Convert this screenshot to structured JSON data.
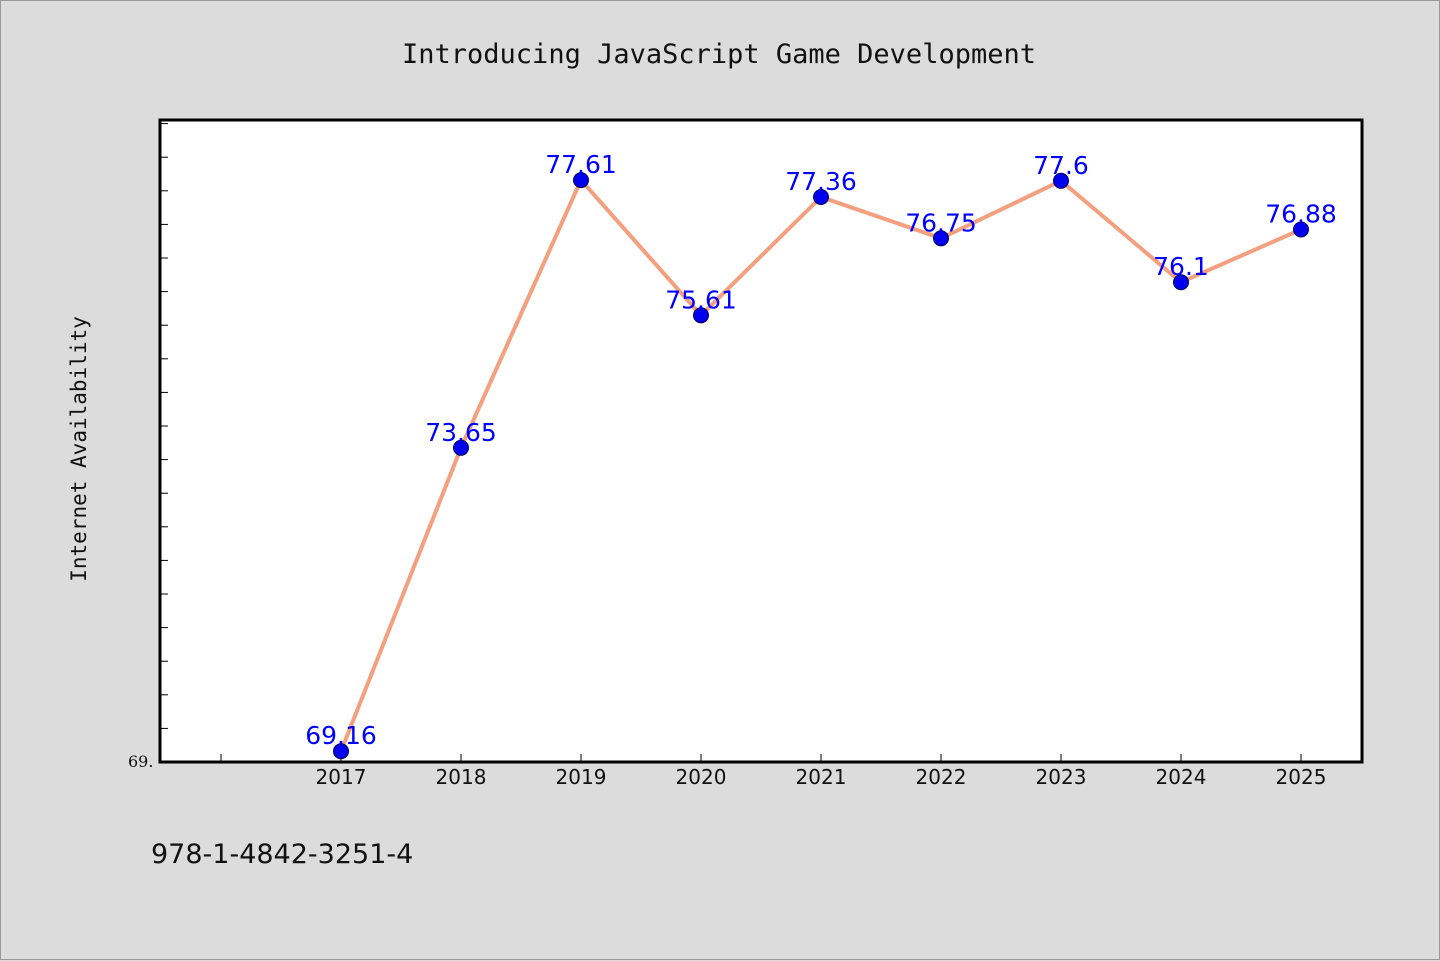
{
  "chart_data": {
    "type": "line",
    "title": "Introducing JavaScript Game Development",
    "xlabel": "",
    "ylabel": "Internet Availability",
    "categories": [
      "2017",
      "2018",
      "2019",
      "2020",
      "2021",
      "2022",
      "2023",
      "2024",
      "2025"
    ],
    "series": [
      {
        "values": [
          69.16,
          73.65,
          77.61,
          75.61,
          77.36,
          76.75,
          77.6,
          76.1,
          76.88
        ]
      }
    ],
    "data_labels": [
      "69.16",
      "73.65",
      "77.61",
      "75.61",
      "77.36",
      "76.75",
      "77.6",
      "76.1",
      "76.88"
    ],
    "y_tick_label": "69.",
    "ylim": [
      69,
      78.5
    ],
    "grid": false,
    "line_color": "#f4a07e",
    "marker_color": "#0000ee",
    "label_color": "#0000ff"
  },
  "footer": {
    "isbn": "978-1-4842-3251-4"
  }
}
